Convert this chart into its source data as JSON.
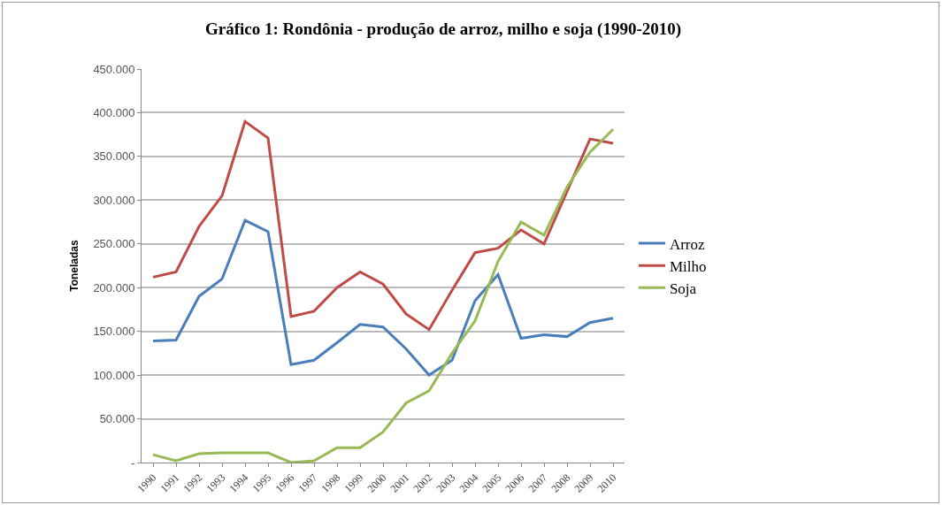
{
  "chart_data": {
    "type": "line",
    "title": "Gráfico 1: Rondônia - produção de arroz, milho e soja (1990-2010)",
    "ylabel": "Toneladas",
    "categories": [
      "1990",
      "1991",
      "1992",
      "1993",
      "1994",
      "1995",
      "1996",
      "1997",
      "1998",
      "1999",
      "2000",
      "2001",
      "2002",
      "2003",
      "2004",
      "2005",
      "2006",
      "2007",
      "2008",
      "2009",
      "2010"
    ],
    "series": [
      {
        "name": "Arroz",
        "color": "#4a7ebb",
        "values": [
          139000,
          140000,
          190000,
          210000,
          277000,
          264000,
          112000,
          117000,
          137000,
          158000,
          155000,
          130000,
          100000,
          117000,
          185000,
          215000,
          142000,
          146000,
          144000,
          160000,
          165000
        ]
      },
      {
        "name": "Milho",
        "color": "#be4b48",
        "values": [
          212000,
          218000,
          270000,
          305000,
          390000,
          371000,
          167000,
          173000,
          200000,
          218000,
          204000,
          170000,
          152000,
          197000,
          240000,
          245000,
          266000,
          250000,
          310000,
          370000,
          365000
        ]
      },
      {
        "name": "Soja",
        "color": "#98b954",
        "values": [
          9000,
          2000,
          10000,
          11000,
          11000,
          11000,
          0,
          2000,
          17000,
          17000,
          35000,
          68000,
          82000,
          125000,
          162000,
          230000,
          275000,
          260000,
          315000,
          355000,
          381000
        ]
      }
    ],
    "ylim": [
      0,
      450000
    ],
    "yticks": [
      {
        "value": 0,
        "label": "-"
      },
      {
        "value": 50000,
        "label": "50.000"
      },
      {
        "value": 100000,
        "label": "100.000"
      },
      {
        "value": 150000,
        "label": "150.000"
      },
      {
        "value": 200000,
        "label": "200.000"
      },
      {
        "value": 250000,
        "label": "250.000"
      },
      {
        "value": 300000,
        "label": "300.000"
      },
      {
        "value": 350000,
        "label": "350.000"
      },
      {
        "value": 400000,
        "label": "400.000"
      },
      {
        "value": 450000,
        "label": "450.000"
      }
    ],
    "grid": "y",
    "legend": "right",
    "marker": "none",
    "line_style": "solid"
  }
}
